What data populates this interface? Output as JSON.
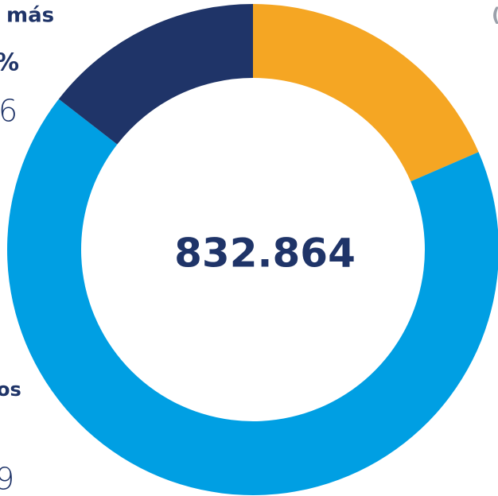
{
  "chart_data": {
    "type": "donut",
    "center_label": "832.864",
    "categories": [
      null,
      null,
      null
    ],
    "values": [
      18.5,
      67,
      14.5
    ],
    "colors": [
      "#f5a623",
      "#009fe3",
      "#1f3468"
    ],
    "annotations": [
      "más",
      "%",
      "6",
      "os",
      "9",
      "("
    ]
  }
}
